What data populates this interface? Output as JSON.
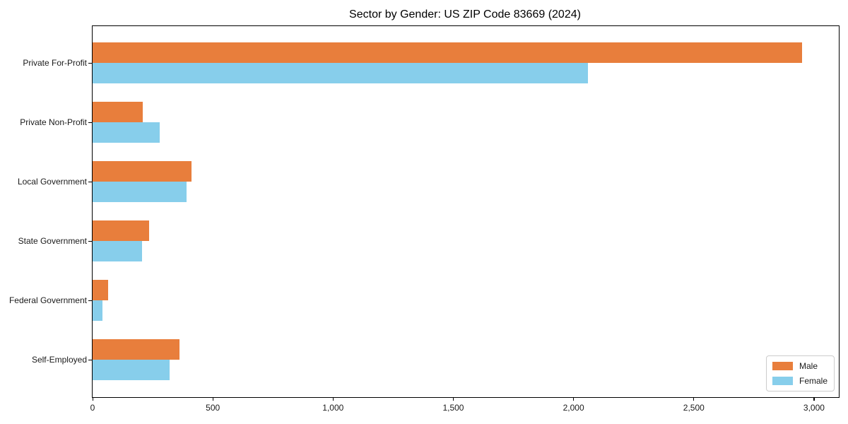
{
  "chart_data": {
    "type": "bar",
    "orientation": "horizontal",
    "title": "Sector by Gender: US ZIP Code 83669 (2024)",
    "categories": [
      "Private For-Profit",
      "Private Non-Profit",
      "Local Government",
      "State Government",
      "Federal Government",
      "Self-Employed"
    ],
    "series": [
      {
        "name": "Male",
        "color": "#E87E3C",
        "values": [
          2950,
          210,
          410,
          235,
          65,
          360
        ]
      },
      {
        "name": "Female",
        "color": "#87CEEB",
        "values": [
          2060,
          280,
          390,
          205,
          40,
          320
        ]
      }
    ],
    "xlabel": "",
    "ylabel": "",
    "xlim": [
      0,
      3103
    ],
    "x_ticks": [
      0,
      500,
      1000,
      1500,
      2000,
      2500,
      3000
    ],
    "x_tick_labels": [
      "0",
      "500",
      "1,000",
      "1,500",
      "2,000",
      "2,500",
      "3,000"
    ],
    "grid": false,
    "legend_position": "lower right"
  }
}
